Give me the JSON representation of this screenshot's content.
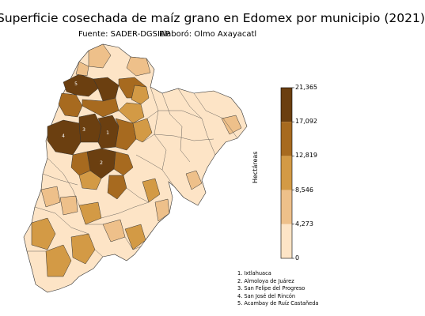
{
  "title": "Superficie cosechada de maíz grano en Edomex por municipio (2021)",
  "subtitle": {
    "source": "Fuente: SADER-DGSIAP",
    "author": "Elaboró: Olmo Axayacatl"
  },
  "colorbar": {
    "label": "Hectáreas",
    "ticks": [
      "21,365",
      "17,092",
      "12,819",
      "8,546",
      "4,273",
      "0"
    ],
    "colors": [
      "#6b3f10",
      "#a76a1f",
      "#d39a45",
      "#eec08a",
      "#fde4c6"
    ]
  },
  "map_labels": [
    "1",
    "2",
    "3",
    "4",
    "5"
  ],
  "notes": [
    "1. Ixtlahuaca",
    "2. Almoloya de Juárez",
    "3. San Felipe del Progreso",
    "4. San José del Rincón",
    "5. Acambay de Ruíz Castañeda"
  ]
}
